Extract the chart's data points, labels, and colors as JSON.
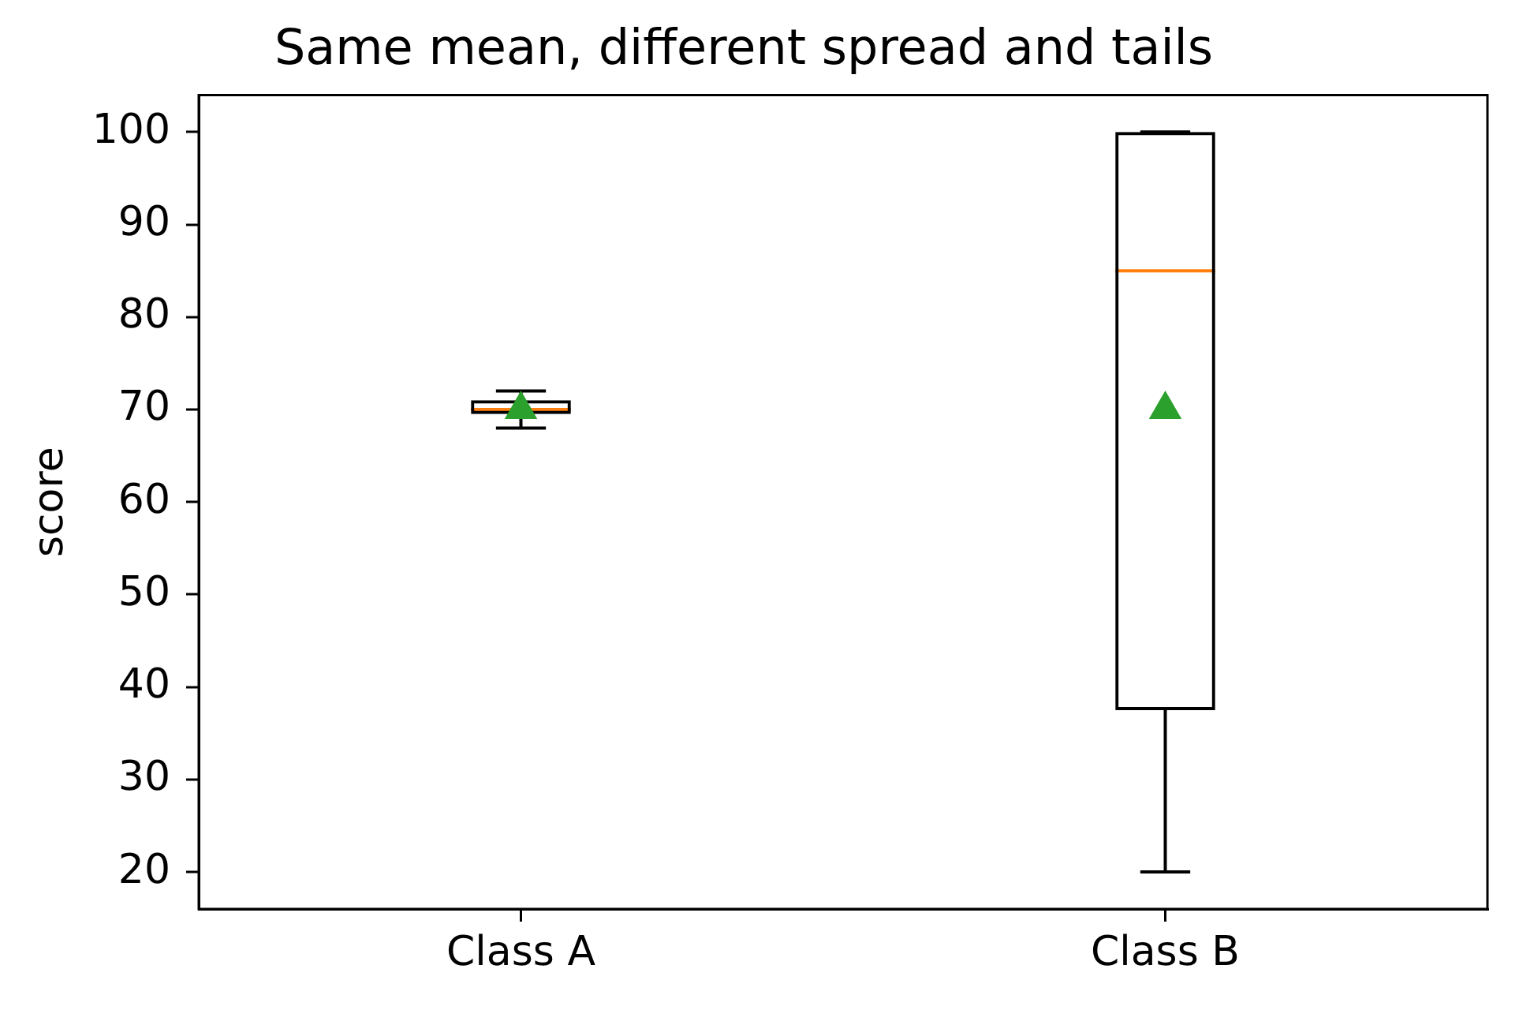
{
  "chart_data": {
    "type": "box",
    "title": "Same mean, different spread and tails",
    "ylabel": "score",
    "categories": [
      "Class A",
      "Class B"
    ],
    "boxes": [
      {
        "low": 68,
        "q1": 69.5,
        "median": 70,
        "q3": 71,
        "high": 72,
        "mean": 70
      },
      {
        "low": 20,
        "q1": 37.5,
        "median": 85,
        "q3": 100,
        "high": 100,
        "mean": 70
      }
    ],
    "ylim": [
      16,
      104
    ],
    "yticks": [
      20,
      30,
      40,
      50,
      60,
      70,
      80,
      90,
      100
    ],
    "color": "#000000",
    "marker": "triangle"
  }
}
